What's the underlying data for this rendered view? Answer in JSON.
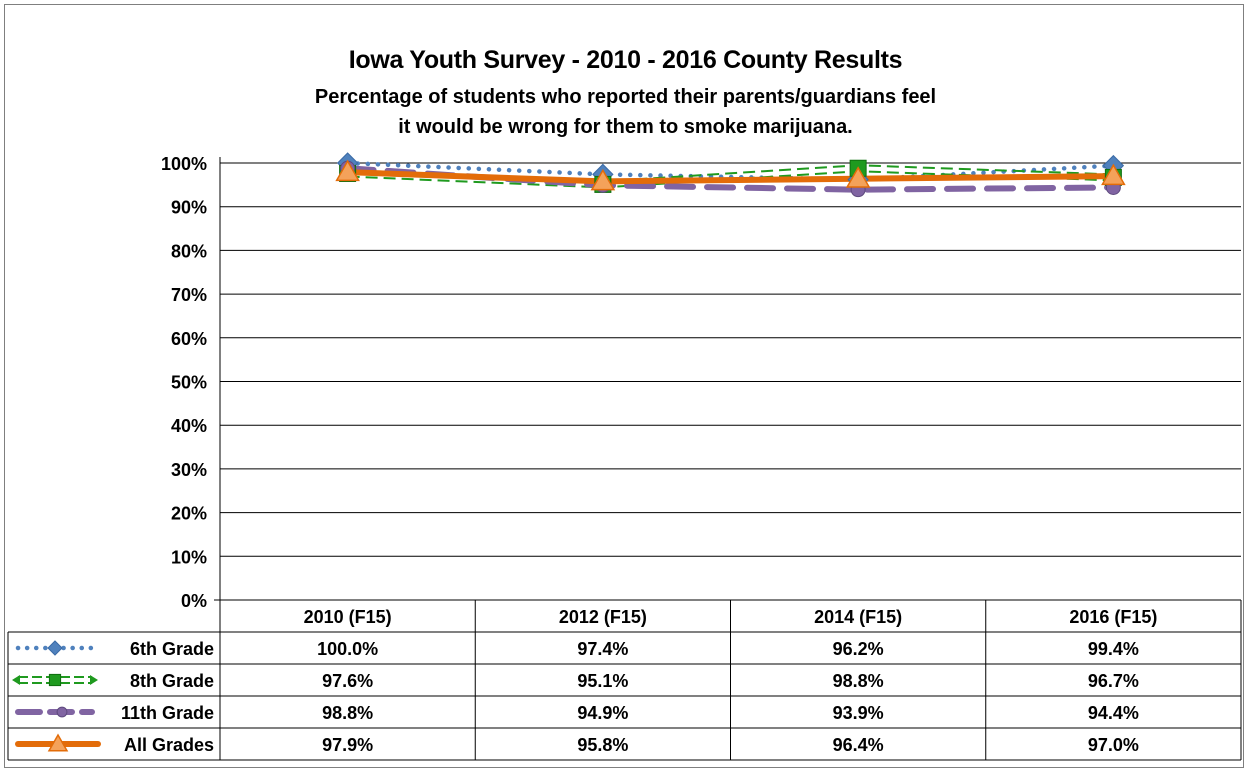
{
  "chart_data": {
    "type": "line",
    "title": "Iowa Youth Survey - 2010 - 2016 County Results",
    "subtitle": [
      "Percentage of students who reported their parents/guardians feel",
      "it would be wrong for them to smoke marijuana."
    ],
    "categories": [
      "2010 (F15)",
      "2012 (F15)",
      "2014 (F15)",
      "2016 (F15)"
    ],
    "yticks": [
      "0%",
      "10%",
      "20%",
      "30%",
      "40%",
      "50%",
      "60%",
      "70%",
      "80%",
      "90%",
      "100%"
    ],
    "ylim": [
      0,
      100
    ],
    "grid": true,
    "legend": "data-table",
    "series": [
      {
        "name": "6th Grade",
        "values": [
          100.0,
          97.4,
          96.2,
          99.4
        ],
        "labels": [
          "100.0%",
          "97.4%",
          "96.2%",
          "99.4%"
        ],
        "color": "#4f81bd",
        "style": "dotted",
        "marker": "diamond"
      },
      {
        "name": "8th Grade",
        "values": [
          97.6,
          95.1,
          98.8,
          96.7
        ],
        "labels": [
          "97.6%",
          "95.1%",
          "98.8%",
          "96.7%"
        ],
        "color": "#1f9a1f",
        "style": "dashed",
        "marker": "square"
      },
      {
        "name": "11th Grade",
        "values": [
          98.8,
          94.9,
          93.9,
          94.4
        ],
        "labels": [
          "98.8%",
          "94.9%",
          "93.9%",
          "94.4%"
        ],
        "color": "#8064a2",
        "style": "long-dash",
        "marker": "circle"
      },
      {
        "name": "All Grades",
        "values": [
          97.9,
          95.8,
          96.4,
          97.0
        ],
        "labels": [
          "97.9%",
          "95.8%",
          "96.4%",
          "97.0%"
        ],
        "color": "#e36c09",
        "style": "solid",
        "marker": "triangle"
      }
    ]
  }
}
